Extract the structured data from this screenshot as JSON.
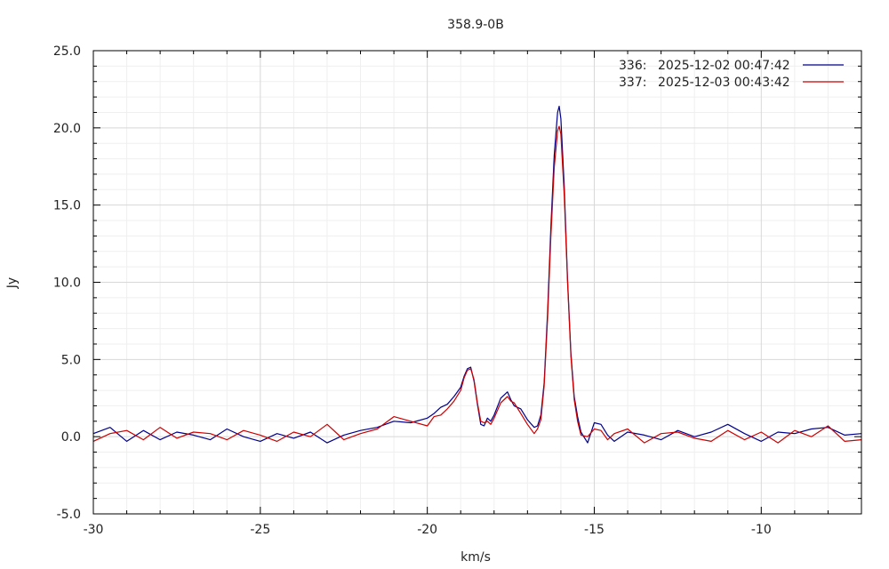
{
  "chart_data": {
    "type": "line",
    "title": "358.9-0B",
    "xlabel": "km/s",
    "ylabel": "Jy",
    "xlim": [
      -30,
      -7
    ],
    "ylim": [
      -5,
      25
    ],
    "x_ticks": [
      -30,
      -25,
      -20,
      -15,
      -10
    ],
    "x_tick_labels": [
      "-30",
      "-25",
      "-20",
      "-15",
      "-10"
    ],
    "y_ticks": [
      -5,
      0,
      5,
      10,
      15,
      20,
      25
    ],
    "y_tick_labels": [
      "-5.0",
      "0.0",
      "5.0",
      "10.0",
      "15.0",
      "20.0",
      "25.0"
    ],
    "grid": true,
    "legend_position": "top-right",
    "series": [
      {
        "name": "2025-12-02 00:47:42",
        "id": "336:",
        "color": "#00008b",
        "x": [
          -30.0,
          -29.5,
          -29.0,
          -28.5,
          -28.0,
          -27.5,
          -27.0,
          -26.5,
          -26.0,
          -25.5,
          -25.0,
          -24.5,
          -24.0,
          -23.5,
          -23.0,
          -22.5,
          -22.0,
          -21.5,
          -21.0,
          -20.5,
          -20.0,
          -19.8,
          -19.6,
          -19.4,
          -19.2,
          -19.0,
          -18.9,
          -18.8,
          -18.7,
          -18.6,
          -18.5,
          -18.4,
          -18.3,
          -18.2,
          -18.1,
          -18.0,
          -17.8,
          -17.6,
          -17.5,
          -17.4,
          -17.2,
          -17.0,
          -16.8,
          -16.7,
          -16.6,
          -16.5,
          -16.4,
          -16.3,
          -16.2,
          -16.1,
          -16.05,
          -16.0,
          -15.9,
          -15.8,
          -15.7,
          -15.6,
          -15.5,
          -15.4,
          -15.2,
          -15.0,
          -14.8,
          -14.6,
          -14.4,
          -14.0,
          -13.5,
          -13.0,
          -12.5,
          -12.0,
          -11.5,
          -11.0,
          -10.5,
          -10.0,
          -9.5,
          -9.0,
          -8.5,
          -8.0,
          -7.5,
          -7.0
        ],
        "y": [
          0.2,
          0.6,
          -0.3,
          0.4,
          -0.2,
          0.3,
          0.1,
          -0.2,
          0.5,
          0.0,
          -0.3,
          0.2,
          -0.1,
          0.3,
          -0.4,
          0.1,
          0.4,
          0.6,
          1.0,
          0.9,
          1.2,
          1.5,
          1.9,
          2.1,
          2.6,
          3.2,
          3.9,
          4.4,
          4.5,
          3.6,
          2.1,
          0.8,
          0.7,
          1.2,
          1.0,
          1.4,
          2.5,
          2.9,
          2.4,
          2.0,
          1.8,
          1.1,
          0.6,
          0.7,
          1.4,
          3.5,
          8.0,
          13.5,
          18.2,
          21.0,
          21.4,
          20.6,
          16.2,
          10.2,
          5.4,
          2.6,
          1.3,
          0.3,
          -0.4,
          0.9,
          0.8,
          0.1,
          -0.3,
          0.3,
          0.1,
          -0.2,
          0.4,
          0.0,
          0.3,
          0.8,
          0.2,
          -0.3,
          0.3,
          0.2,
          0.5,
          0.6,
          0.1,
          0.2
        ]
      },
      {
        "name": "2025-12-03 00:43:42",
        "id": "337:",
        "color": "#cc0000",
        "x": [
          -30.0,
          -29.5,
          -29.0,
          -28.5,
          -28.0,
          -27.5,
          -27.0,
          -26.5,
          -26.0,
          -25.5,
          -25.0,
          -24.5,
          -24.0,
          -23.5,
          -23.0,
          -22.5,
          -22.0,
          -21.5,
          -21.0,
          -20.5,
          -20.0,
          -19.8,
          -19.6,
          -19.4,
          -19.2,
          -19.0,
          -18.9,
          -18.8,
          -18.7,
          -18.6,
          -18.5,
          -18.4,
          -18.3,
          -18.2,
          -18.1,
          -18.0,
          -17.8,
          -17.6,
          -17.5,
          -17.4,
          -17.2,
          -17.0,
          -16.8,
          -16.7,
          -16.6,
          -16.5,
          -16.4,
          -16.3,
          -16.2,
          -16.1,
          -16.05,
          -16.0,
          -15.9,
          -15.8,
          -15.7,
          -15.6,
          -15.5,
          -15.4,
          -15.2,
          -15.0,
          -14.8,
          -14.6,
          -14.4,
          -14.0,
          -13.5,
          -13.0,
          -12.5,
          -12.0,
          -11.5,
          -11.0,
          -10.5,
          -10.0,
          -9.5,
          -9.0,
          -8.5,
          -8.0,
          -7.5,
          -7.0
        ],
        "y": [
          -0.3,
          0.2,
          0.4,
          -0.2,
          0.6,
          -0.1,
          0.3,
          0.2,
          -0.2,
          0.4,
          0.1,
          -0.3,
          0.3,
          0.0,
          0.8,
          -0.2,
          0.2,
          0.5,
          1.3,
          1.0,
          0.7,
          1.3,
          1.4,
          1.8,
          2.3,
          3.0,
          3.8,
          4.3,
          4.4,
          3.7,
          2.2,
          1.0,
          0.9,
          1.0,
          0.8,
          1.2,
          2.2,
          2.6,
          2.3,
          2.2,
          1.5,
          0.8,
          0.2,
          0.5,
          1.1,
          3.3,
          7.6,
          12.9,
          17.4,
          19.8,
          20.1,
          19.6,
          15.6,
          10.0,
          5.2,
          2.4,
          1.0,
          0.1,
          0.0,
          0.5,
          0.4,
          -0.2,
          0.2,
          0.5,
          -0.4,
          0.2,
          0.3,
          -0.1,
          -0.3,
          0.4,
          -0.2,
          0.3,
          -0.4,
          0.4,
          0.0,
          0.7,
          -0.3,
          -0.2
        ]
      }
    ]
  }
}
